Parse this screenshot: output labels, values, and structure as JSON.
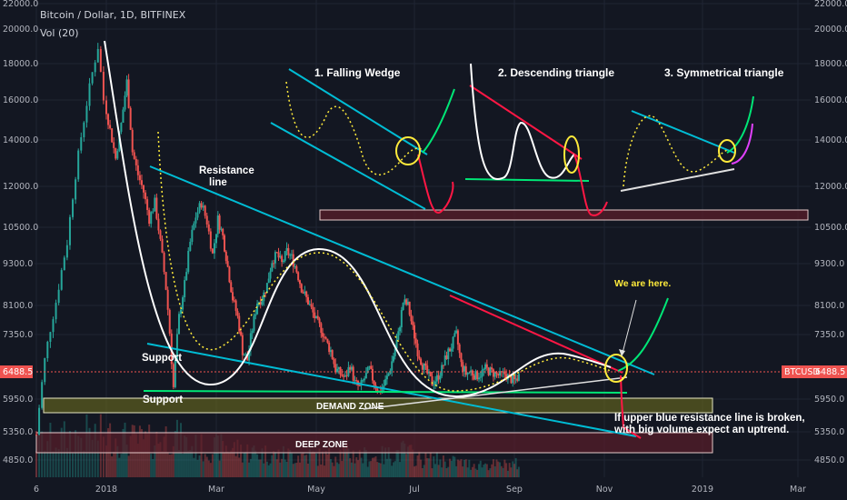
{
  "chart_data": {
    "type": "candlestick",
    "symbol_title": "Bitcoin / Dollar, 1D, BITFINEX",
    "volume_label": "Vol (20)",
    "y_ticks": [
      "22000.0",
      "20000.0",
      "18000.0",
      "16000.0",
      "14000.0",
      "12000.0",
      "10500.0",
      "9300.0",
      "8100.0",
      "7350.0",
      "5950.0",
      "5350.0",
      "4850.0"
    ],
    "y_tick_values": [
      22000,
      20000,
      18000,
      16000,
      14000,
      12000,
      10500,
      9300,
      8100,
      7350,
      5950,
      5350,
      4850
    ],
    "x_ticks": [
      "6",
      "2018",
      "Mar",
      "May",
      "Jul",
      "Sep",
      "Nov",
      "2019",
      "Mar"
    ],
    "x_tick_days": [
      -25,
      0,
      59,
      120,
      181,
      243,
      304,
      365,
      424
    ],
    "last_price": "6488.5",
    "symbol_tag": "BTCUSD",
    "last_price_value": 6488.5,
    "price_path": [
      [
        -25,
        5300
      ],
      [
        -22,
        6800
      ],
      [
        -18,
        8200
      ],
      [
        -14,
        10000
      ],
      [
        -11,
        12500
      ],
      [
        -8,
        15000
      ],
      [
        -5,
        17500
      ],
      [
        -3,
        19000
      ],
      [
        -1,
        16000
      ],
      [
        2,
        14500
      ],
      [
        5,
        13200
      ],
      [
        8,
        14800
      ],
      [
        11,
        17000
      ],
      [
        14,
        13500
      ],
      [
        17,
        12500
      ],
      [
        20,
        11800
      ],
      [
        23,
        10800
      ],
      [
        26,
        11400
      ],
      [
        29,
        10000
      ],
      [
        32,
        8600
      ],
      [
        34,
        7400
      ],
      [
        36,
        6200
      ],
      [
        39,
        7800
      ],
      [
        42,
        8700
      ],
      [
        45,
        10000
      ],
      [
        48,
        10900
      ],
      [
        51,
        11400
      ],
      [
        54,
        10700
      ],
      [
        57,
        9600
      ],
      [
        60,
        10800
      ],
      [
        63,
        10200
      ],
      [
        66,
        9200
      ],
      [
        69,
        8300
      ],
      [
        72,
        7800
      ],
      [
        75,
        7000
      ],
      [
        78,
        6800
      ],
      [
        81,
        7500
      ],
      [
        84,
        8200
      ],
      [
        87,
        8300
      ],
      [
        90,
        8700
      ],
      [
        93,
        9400
      ],
      [
        96,
        9600
      ],
      [
        99,
        9300
      ],
      [
        102,
        9700
      ],
      [
        105,
        9500
      ],
      [
        108,
        9100
      ],
      [
        111,
        8600
      ],
      [
        114,
        8300
      ],
      [
        117,
        8000
      ],
      [
        120,
        7700
      ],
      [
        123,
        7500
      ],
      [
        126,
        7200
      ],
      [
        129,
        7000
      ],
      [
        132,
        6600
      ],
      [
        135,
        6500
      ],
      [
        138,
        6400
      ],
      [
        141,
        6700
      ],
      [
        144,
        6300
      ],
      [
        147,
        6200
      ],
      [
        150,
        6400
      ],
      [
        153,
        6600
      ],
      [
        156,
        6300
      ],
      [
        159,
        6100
      ],
      [
        162,
        6250
      ],
      [
        165,
        6500
      ],
      [
        168,
        6900
      ],
      [
        171,
        7350
      ],
      [
        174,
        8200
      ],
      [
        177,
        8100
      ],
      [
        180,
        7500
      ],
      [
        183,
        7000
      ],
      [
        186,
        6700
      ],
      [
        189,
        6500
      ],
      [
        192,
        6300
      ],
      [
        195,
        6400
      ],
      [
        198,
        6600
      ],
      [
        201,
        6900
      ],
      [
        204,
        7100
      ],
      [
        207,
        7350
      ],
      [
        210,
        6700
      ],
      [
        213,
        6500
      ],
      [
        216,
        6550
      ],
      [
        219,
        6450
      ],
      [
        222,
        6500
      ],
      [
        225,
        6600
      ],
      [
        228,
        6550
      ],
      [
        231,
        6500
      ],
      [
        234,
        6450
      ],
      [
        237,
        6500
      ],
      [
        240,
        6400
      ],
      [
        243,
        6350
      ],
      [
        246,
        6450
      ]
    ],
    "volume_path": [
      [
        -25,
        0.8
      ],
      [
        -15,
        0.9
      ],
      [
        -5,
        1.0
      ],
      [
        5,
        0.9
      ],
      [
        15,
        0.85
      ],
      [
        25,
        0.8
      ],
      [
        35,
        1.0
      ],
      [
        45,
        0.7
      ],
      [
        55,
        0.65
      ],
      [
        65,
        0.7
      ],
      [
        75,
        0.6
      ],
      [
        85,
        0.55
      ],
      [
        95,
        0.5
      ],
      [
        105,
        0.5
      ],
      [
        115,
        0.5
      ],
      [
        125,
        0.45
      ],
      [
        135,
        0.55
      ],
      [
        145,
        0.5
      ],
      [
        155,
        0.45
      ],
      [
        165,
        0.5
      ],
      [
        175,
        0.6
      ],
      [
        185,
        0.4
      ],
      [
        195,
        0.4
      ],
      [
        205,
        0.35
      ],
      [
        215,
        0.3
      ],
      [
        225,
        0.3
      ],
      [
        235,
        0.28
      ],
      [
        245,
        0.3
      ]
    ],
    "annotations": {
      "falling_wedge": "1. Falling Wedge",
      "descending_triangle": "2. Descending triangle",
      "symmetrical_triangle": "3. Symmetrical triangle",
      "resistance_line_1": "Resistance",
      "resistance_line_2": "line",
      "support_upper": "Support",
      "support_lower": "Support",
      "demand_zone": "DEMAND ZONE",
      "deep_zone": "DEEP ZONE",
      "we_are_here": "We are here.",
      "note_line_1": "If upper blue resistance line is broken,",
      "note_line_2": "with big volume expect an uptrend."
    },
    "grid": true
  },
  "colors": {
    "background": "#131722",
    "up": "#26a69a",
    "down": "#ef5350",
    "trendline": "#00bcd4",
    "pattern_curve": "#ffffff",
    "dotted_curve": "#ffeb3b",
    "breakout": "#00e676",
    "breakdown": "#ff1744",
    "price_tag": "#ef5350"
  }
}
